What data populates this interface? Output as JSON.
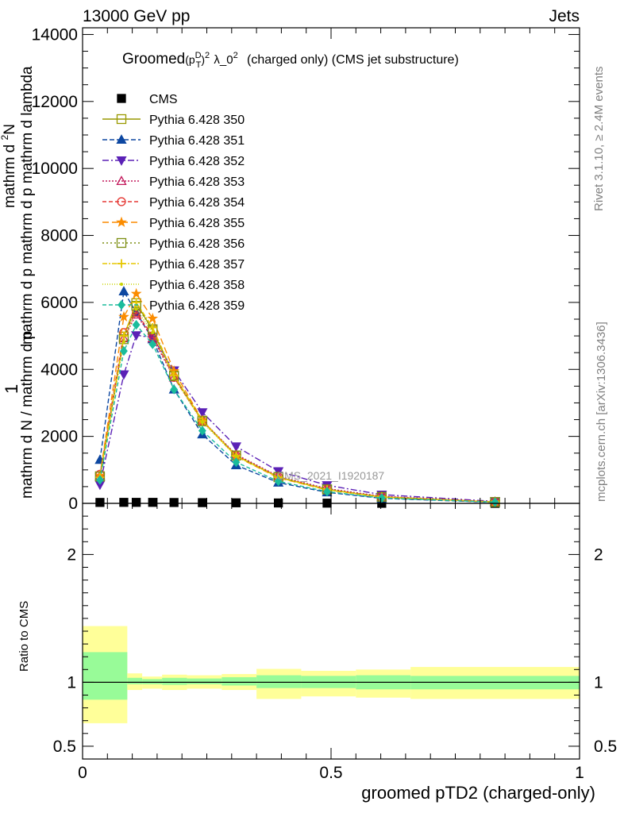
{
  "header": {
    "energy_label": "13000 GeV pp",
    "category_label": "Jets"
  },
  "side_labels": {
    "rivet": "Rivet 3.1.10, ≥ 2.4M events",
    "mcplots": "mcplots.cern.ch [arXiv:1306.3436]"
  },
  "chart_data": [
    {
      "type": "line",
      "title": {
        "main": "Groomed",
        "sup1": "D",
        "sub1": "T",
        "sup2": "2",
        "mid": "λ_0",
        "sup3": "2",
        "rest": "(charged only) (CMS jet substructure)"
      },
      "ylabel": {
        "numerator_1": "1",
        "denominator_1": "mathrm d N / mathrm d p",
        "numerator_2": "mathrm d",
        "numerator_2_sup": "2",
        "numerator_2_tail": "N",
        "denominator_2": "mathrm d p",
        "denominator_2_mid": "mathrm d",
        "denominator_2_tail": "mathrm d lambda"
      },
      "watermark": "CMS_2021_I1920187",
      "xlim": [
        0,
        1
      ],
      "ylim": [
        0,
        14200
      ],
      "yticks": [
        0,
        2000,
        4000,
        6000,
        8000,
        10000,
        12000,
        14000
      ],
      "bin_edges": [
        0.0,
        0.09,
        0.105,
        0.12,
        0.16,
        0.21,
        0.28,
        0.35,
        0.44,
        0.55,
        0.66,
        1.0
      ],
      "x": [
        0.035,
        0.083,
        0.108,
        0.141,
        0.184,
        0.241,
        0.309,
        0.394,
        0.492,
        0.602,
        0.83
      ],
      "series": [
        {
          "name": "CMS",
          "color": "#000000",
          "marker": "square-filled",
          "dash": "none",
          "values": [
            28,
            30,
            30,
            30,
            26,
            22,
            17,
            12,
            7,
            2,
            0
          ]
        },
        {
          "name": "Pythia 6.428 350",
          "color": "#999900",
          "marker": "square-open",
          "dash": "solid",
          "values": [
            810,
            4980,
            5980,
            5160,
            3820,
            2470,
            1430,
            780,
            410,
            190,
            40
          ]
        },
        {
          "name": "Pythia 6.428 351",
          "color": "#0d47a1",
          "marker": "triangle-up-filled",
          "dash": "6,3",
          "values": [
            1300,
            6330,
            5700,
            4900,
            3400,
            2060,
            1140,
            620,
            330,
            150,
            30
          ]
        },
        {
          "name": "Pythia 6.428 352",
          "color": "#5b21b6",
          "marker": "triangle-down-filled",
          "dash": "8,3,2,3",
          "values": [
            560,
            3850,
            5020,
            4950,
            3970,
            2720,
            1700,
            960,
            540,
            260,
            60
          ]
        },
        {
          "name": "Pythia 6.428 353",
          "color": "#c2185b",
          "marker": "triangle-up-open",
          "dash": "2,2",
          "values": [
            820,
            4930,
            5640,
            4930,
            3760,
            2470,
            1460,
            810,
            440,
            210,
            50
          ]
        },
        {
          "name": "Pythia 6.428 354",
          "color": "#e53935",
          "marker": "circle-open",
          "dash": "5,3",
          "values": [
            870,
            5100,
            5700,
            5000,
            3760,
            2450,
            1430,
            790,
            420,
            200,
            40
          ]
        },
        {
          "name": "Pythia 6.428 355",
          "color": "#fb8c00",
          "marker": "star-filled",
          "dash": "8,4",
          "values": [
            830,
            5570,
            6260,
            5520,
            3950,
            2480,
            1400,
            760,
            400,
            185,
            40
          ]
        },
        {
          "name": "Pythia 6.428 356",
          "color": "#7c8e12",
          "marker": "square-open",
          "dash": "2,3",
          "values": [
            800,
            4900,
            5900,
            5200,
            3800,
            2450,
            1430,
            790,
            420,
            195,
            40
          ]
        },
        {
          "name": "Pythia 6.428 357",
          "color": "#e6c700",
          "marker": "plus",
          "dash": "6,2,2,2",
          "values": [
            780,
            5000,
            6000,
            5250,
            3820,
            2460,
            1420,
            780,
            410,
            190,
            40
          ]
        },
        {
          "name": "Pythia 6.428 358",
          "color": "#c8d400",
          "marker": "dot",
          "dash": "1,2",
          "values": [
            760,
            4820,
            5800,
            5100,
            3750,
            2420,
            1400,
            770,
            405,
            185,
            40
          ]
        },
        {
          "name": "Pythia 6.428 359",
          "color": "#1abc9c",
          "marker": "diamond-filled",
          "dash": "5,3",
          "values": [
            700,
            4550,
            5330,
            4750,
            3400,
            2170,
            1230,
            660,
            350,
            160,
            35
          ]
        }
      ]
    },
    {
      "type": "area",
      "ylabel": "Ratio to CMS",
      "xlabel": "groomed pTD2 (charged-only)",
      "xlim": [
        0,
        1
      ],
      "xticks": [
        0,
        0.5,
        1
      ],
      "xtick_labels": [
        "0",
        "0.5",
        "1"
      ],
      "ylim": [
        0.4,
        2.4
      ],
      "ytick_labels_left": [
        "0.5",
        "1",
        "2"
      ],
      "ytick_labels_right": [
        "0.5",
        "1",
        "2"
      ],
      "ytick_values": [
        0.5,
        1,
        2
      ],
      "bands": [
        {
          "x0": 0.0,
          "x1": 0.09,
          "stat_lo": 0.864,
          "stat_hi": 1.236,
          "tot_lo": 0.68,
          "tot_hi": 1.44
        },
        {
          "x0": 0.09,
          "x1": 0.12,
          "stat_lo": 0.985,
          "stat_hi": 1.035,
          "tot_lo": 0.94,
          "tot_hi": 1.07
        },
        {
          "x0": 0.12,
          "x1": 0.16,
          "stat_lo": 0.985,
          "stat_hi": 1.025,
          "tot_lo": 0.95,
          "tot_hi": 1.045
        },
        {
          "x0": 0.16,
          "x1": 0.21,
          "stat_lo": 0.98,
          "stat_hi": 1.035,
          "tot_lo": 0.94,
          "tot_hi": 1.06
        },
        {
          "x0": 0.21,
          "x1": 0.28,
          "stat_lo": 0.985,
          "stat_hi": 1.03,
          "tot_lo": 0.95,
          "tot_hi": 1.055
        },
        {
          "x0": 0.28,
          "x1": 0.35,
          "stat_lo": 0.975,
          "stat_hi": 1.04,
          "tot_lo": 0.94,
          "tot_hi": 1.065
        },
        {
          "x0": 0.35,
          "x1": 0.44,
          "stat_lo": 0.955,
          "stat_hi": 1.055,
          "tot_lo": 0.87,
          "tot_hi": 1.105
        },
        {
          "x0": 0.44,
          "x1": 0.55,
          "stat_lo": 0.955,
          "stat_hi": 1.05,
          "tot_lo": 0.89,
          "tot_hi": 1.09
        },
        {
          "x0": 0.55,
          "x1": 0.66,
          "stat_lo": 0.945,
          "stat_hi": 1.055,
          "tot_lo": 0.88,
          "tot_hi": 1.1
        },
        {
          "x0": 0.66,
          "x1": 1.0,
          "stat_lo": 0.945,
          "stat_hi": 1.05,
          "tot_lo": 0.87,
          "tot_hi": 1.12
        }
      ],
      "colors": {
        "stat": "#98fb98",
        "total": "#ffff99",
        "reference_line": "#000000"
      }
    }
  ]
}
